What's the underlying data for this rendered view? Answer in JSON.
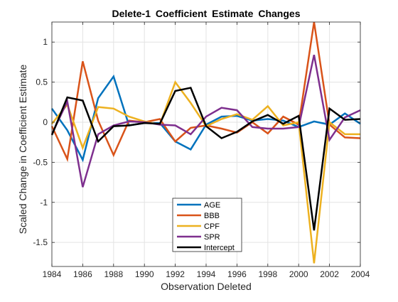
{
  "chart_data": {
    "type": "line",
    "title": "Delete-1  Coefficient  Estimate  Changes",
    "xlabel": "Observation Deleted",
    "ylabel": "Scaled Change in Coefficient Estimate",
    "xlim": [
      1984,
      2004
    ],
    "ylim": [
      -1.8,
      1.25
    ],
    "xticks": [
      1984,
      1986,
      1988,
      1990,
      1992,
      1994,
      1996,
      1998,
      2000,
      2002,
      2004
    ],
    "xtick_labels": [
      "1984",
      "1986",
      "1988",
      "1990",
      "1992",
      "1994",
      "1996",
      "1998",
      "2000",
      "2002",
      "2004"
    ],
    "yticks": [
      -1.5,
      -1,
      -0.5,
      0,
      0.5,
      1
    ],
    "ytick_labels": [
      "-1.5",
      "-1",
      "-0.5",
      "0",
      "0.5",
      "1"
    ],
    "grid": true,
    "legend_position": "bottom-center",
    "x": [
      1984,
      1985,
      1986,
      1987,
      1988,
      1989,
      1990,
      1991,
      1992,
      1993,
      1994,
      1995,
      1996,
      1997,
      1998,
      1999,
      2000,
      2001,
      2002,
      2003,
      2004
    ],
    "series": [
      {
        "name": "AGE",
        "color": "#0072BD",
        "values": [
          0.17,
          -0.1,
          -0.47,
          0.3,
          0.57,
          -0.04,
          -0.01,
          -0.01,
          -0.24,
          -0.34,
          -0.03,
          0.07,
          0.08,
          0.02,
          0.04,
          0.02,
          -0.06,
          0.01,
          -0.03,
          0.11,
          -0.02
        ]
      },
      {
        "name": "BBB",
        "color": "#D95319",
        "values": [
          -0.05,
          -0.46,
          0.76,
          0.02,
          -0.41,
          0.02,
          0.0,
          0.04,
          -0.24,
          -0.07,
          -0.04,
          -0.08,
          -0.13,
          0.0,
          -0.14,
          0.07,
          -0.03,
          1.25,
          -0.03,
          -0.19,
          -0.2
        ]
      },
      {
        "name": "CPF",
        "color": "#EDB120",
        "values": [
          -0.02,
          0.22,
          -0.32,
          0.19,
          0.17,
          0.07,
          0.01,
          -0.03,
          0.5,
          0.24,
          -0.05,
          0.04,
          0.1,
          0.03,
          0.2,
          -0.04,
          0.0,
          -1.76,
          0.0,
          -0.15,
          -0.15
        ]
      },
      {
        "name": "SPR",
        "color": "#7E2F8E",
        "values": [
          -0.15,
          0.26,
          -0.81,
          -0.15,
          -0.04,
          0.01,
          0.0,
          -0.03,
          -0.04,
          -0.15,
          0.07,
          0.18,
          0.15,
          -0.06,
          -0.08,
          -0.08,
          -0.06,
          0.84,
          -0.22,
          0.06,
          0.15
        ]
      },
      {
        "name": "Intercept",
        "color": "#000000",
        "values": [
          -0.16,
          0.31,
          0.27,
          -0.24,
          -0.05,
          -0.04,
          -0.01,
          -0.02,
          0.39,
          0.43,
          -0.05,
          -0.2,
          -0.12,
          0.01,
          0.09,
          -0.02,
          0.08,
          -1.35,
          0.17,
          0.03,
          0.04
        ]
      }
    ]
  }
}
